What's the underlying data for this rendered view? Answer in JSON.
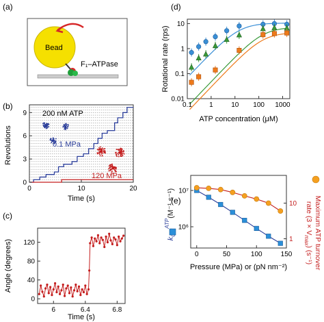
{
  "panels": {
    "a": {
      "letter": "(a)",
      "bead_label": "Bead",
      "enzyme_label": "F₁–ATPase",
      "colors": {
        "bead": "#f5e000",
        "arrow": "#d62728",
        "box": "#555555"
      }
    },
    "b": {
      "letter": "(b)",
      "ylabel": "Revolutions",
      "xlabel": "Time (s)",
      "annotation_top": "200 nM ATP",
      "annotation_blue": "0.1 MPa",
      "annotation_red": "120 MPa",
      "xticks": [
        "0",
        "10",
        "20"
      ],
      "yticks": [
        "0",
        "3",
        "6",
        "9"
      ],
      "colors": {
        "blue": "#2b3e9a",
        "red": "#c41e1e"
      }
    },
    "c": {
      "letter": "(c)",
      "ylabel": "Angle (degrees)",
      "xlabel": "Time (s)",
      "xticks": [
        "6",
        "6.4",
        "6.8"
      ],
      "yticks": [
        "0",
        "40",
        "80",
        "120"
      ],
      "color": "#c41e1e"
    },
    "d": {
      "letter": "(d)",
      "ylabel": "Rotational rate (rps)",
      "xlabel": "ATP concentration (μM)",
      "xticks": [
        "0.1",
        "1",
        "10",
        "100",
        "1000"
      ],
      "yticks": [
        "0.01",
        "0.1",
        "1",
        "10"
      ]
    },
    "e": {
      "letter": "(e)",
      "xlabel": "Pressure (MPa) or (pN nm⁻²)",
      "xticks": [
        "0",
        "50",
        "100",
        "150"
      ],
      "yticks_left": [
        "10⁶",
        "10⁷"
      ],
      "yticks_right": [
        "1",
        "10"
      ],
      "ylabel_left_main": "k",
      "ylabel_left_sub": "ON",
      "ylabel_left_sup": "ATP",
      "ylabel_left_unit": "(M⁻¹ s⁻¹)",
      "ylabel_right_line1": "Maximum ATP turnover",
      "ylabel_right_line2": "rate (3 × V",
      "ylabel_right_sub": "max",
      "ylabel_right_end": ") (s⁻¹)"
    }
  },
  "chart_data": [
    {
      "type": "line",
      "panel": "b",
      "xlabel": "Time (s)",
      "ylabel": "Revolutions",
      "xlim": [
        0,
        20
      ],
      "ylim": [
        0,
        10
      ],
      "series": [
        {
          "name": "0.1 MPa",
          "color": "#2b3e9a",
          "x": [
            0,
            0.8,
            0.8,
            2.0,
            2.0,
            3.2,
            3.2,
            4.8,
            4.8,
            5.6,
            5.6,
            6.6,
            6.6,
            8.2,
            8.2,
            9.2,
            9.2,
            10.4,
            10.4,
            11.4,
            11.4,
            12.4,
            12.4,
            13.2,
            13.2,
            14.0,
            14.0,
            15.0,
            15.0,
            16.4,
            16.4,
            17.0,
            17.0,
            18.0,
            18.0,
            18.8,
            18.8,
            20
          ],
          "y": [
            0,
            0,
            0.33,
            0.33,
            0.67,
            0.67,
            1.0,
            1.0,
            1.33,
            1.33,
            2.0,
            2.0,
            2.33,
            2.33,
            2.67,
            2.67,
            3.33,
            3.33,
            3.67,
            3.67,
            4.33,
            4.33,
            5.0,
            5.0,
            5.67,
            5.67,
            6.33,
            6.33,
            6.67,
            6.67,
            7.67,
            7.67,
            8.33,
            8.33,
            9.0,
            9.0,
            9.67,
            9.67
          ]
        },
        {
          "name": "120 MPa",
          "color": "#c41e1e",
          "x": [
            0,
            6.2,
            6.2,
            20
          ],
          "y": [
            0,
            0,
            0.33,
            0.33
          ]
        }
      ]
    },
    {
      "type": "line",
      "panel": "c",
      "xlabel": "Time (s)",
      "ylabel": "Angle (degrees)",
      "xlim": [
        5.8,
        6.9
      ],
      "ylim": [
        -10,
        150
      ],
      "series": [
        {
          "name": "angle",
          "color": "#c41e1e",
          "x": [
            5.82,
            5.84,
            5.86,
            5.88,
            5.9,
            5.92,
            5.94,
            5.96,
            5.98,
            6.0,
            6.02,
            6.04,
            6.06,
            6.08,
            6.1,
            6.12,
            6.14,
            6.16,
            6.18,
            6.2,
            6.22,
            6.24,
            6.26,
            6.28,
            6.3,
            6.32,
            6.34,
            6.36,
            6.38,
            6.4,
            6.42,
            6.44,
            6.45,
            6.46,
            6.48,
            6.5,
            6.52,
            6.54,
            6.56,
            6.58,
            6.6,
            6.62,
            6.64,
            6.66,
            6.68,
            6.7,
            6.72,
            6.74,
            6.76,
            6.78,
            6.8,
            6.82,
            6.84,
            6.86,
            6.88
          ],
          "y": [
            10,
            28,
            15,
            5,
            22,
            30,
            12,
            25,
            8,
            20,
            33,
            14,
            26,
            10,
            18,
            30,
            6,
            22,
            28,
            12,
            24,
            5,
            18,
            30,
            16,
            26,
            8,
            20,
            14,
            28,
            10,
            20,
            60,
            118,
            130,
            112,
            128,
            122,
            135,
            118,
            130,
            125,
            110,
            132,
            120,
            138,
            124,
            116,
            130,
            126,
            114,
            132,
            122,
            128,
            134
          ]
        }
      ]
    },
    {
      "type": "scatter",
      "panel": "d",
      "xlabel": "ATP concentration (μM)",
      "ylabel": "Rotational rate (rps)",
      "xscale": "log",
      "yscale": "log",
      "xlim": [
        0.1,
        2000
      ],
      "ylim": [
        0.01,
        15
      ],
      "series": [
        {
          "color": "#3a8fd6",
          "marker": "circle",
          "x": [
            0.15,
            0.3,
            0.6,
            1.5,
            4.5,
            15,
            150,
            450,
            1500
          ],
          "y": [
            0.7,
            1.2,
            1.9,
            3.0,
            5.2,
            8.0,
            9.4,
            10.0,
            9.4
          ]
        },
        {
          "color": "#3a9a3a",
          "marker": "triangle",
          "x": [
            0.15,
            0.3,
            0.6,
            1.5,
            4.5,
            15,
            150,
            450,
            1500
          ],
          "y": [
            0.18,
            0.42,
            0.6,
            1.3,
            2.3,
            3.5,
            6.2,
            6.8,
            6.6
          ]
        },
        {
          "color": "#ee7a1a",
          "marker": "square",
          "x": [
            0.15,
            0.3,
            1.5,
            15,
            150,
            450,
            1500
          ],
          "y": [
            0.045,
            0.075,
            0.14,
            0.85,
            3.6,
            4.0,
            4.2
          ]
        }
      ]
    },
    {
      "type": "scatter",
      "panel": "e",
      "xlabel": "Pressure (MPa) or (pN nm⁻²)",
      "xlim": [
        -10,
        150
      ],
      "series": [
        {
          "color": "#2b8fd9",
          "marker": "square",
          "axis": "left",
          "yscale": "log",
          "x": [
            0,
            20,
            40,
            60,
            80,
            100,
            120,
            140
          ],
          "y": [
            10000000.0,
            6500000.0,
            4100000.0,
            2500000.0,
            1500000.0,
            900000.0,
            550000.0,
            350000.0
          ]
        },
        {
          "color": "#f5a020",
          "marker": "circle",
          "axis": "right",
          "yscale": "log",
          "x": [
            0,
            20,
            40,
            60,
            80,
            100,
            120,
            140
          ],
          "y": [
            27,
            26,
            24,
            20,
            16,
            13,
            10,
            6
          ]
        }
      ]
    }
  ]
}
